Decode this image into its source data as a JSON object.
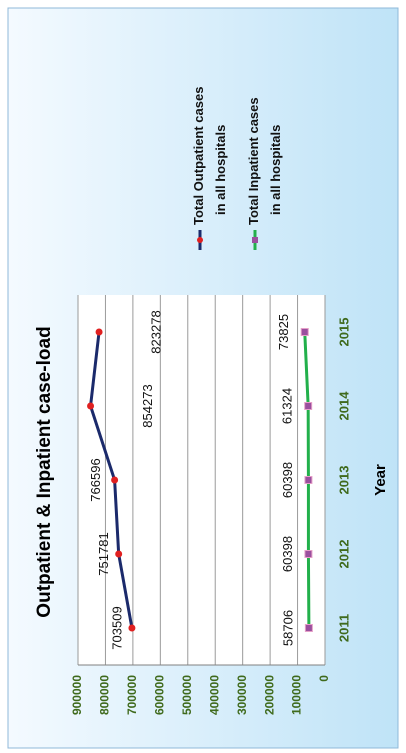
{
  "chart_data": {
    "type": "line",
    "title": "Outpatient & Inpatient case-load",
    "x_label": "Year",
    "categories": [
      "2011",
      "2012",
      "2013",
      "2014",
      "2015"
    ],
    "series": [
      {
        "name": "Total Outpatient cases in all hospitals",
        "color": "#1b2a6b",
        "marker_color": "#e02020",
        "values": [
          703509,
          751781,
          766596,
          854273,
          823278
        ]
      },
      {
        "name": "Total Inpatient cases in all hospitals",
        "color": "#22b04b",
        "marker_color": "#9a4f9e",
        "values": [
          58706,
          60398,
          60398,
          61324,
          73825
        ]
      }
    ],
    "ylim": [
      0,
      900000
    ],
    "yticks": [
      0,
      100000,
      200000,
      300000,
      400000,
      500000,
      600000,
      700000,
      800000,
      900000
    ],
    "grid": true
  }
}
